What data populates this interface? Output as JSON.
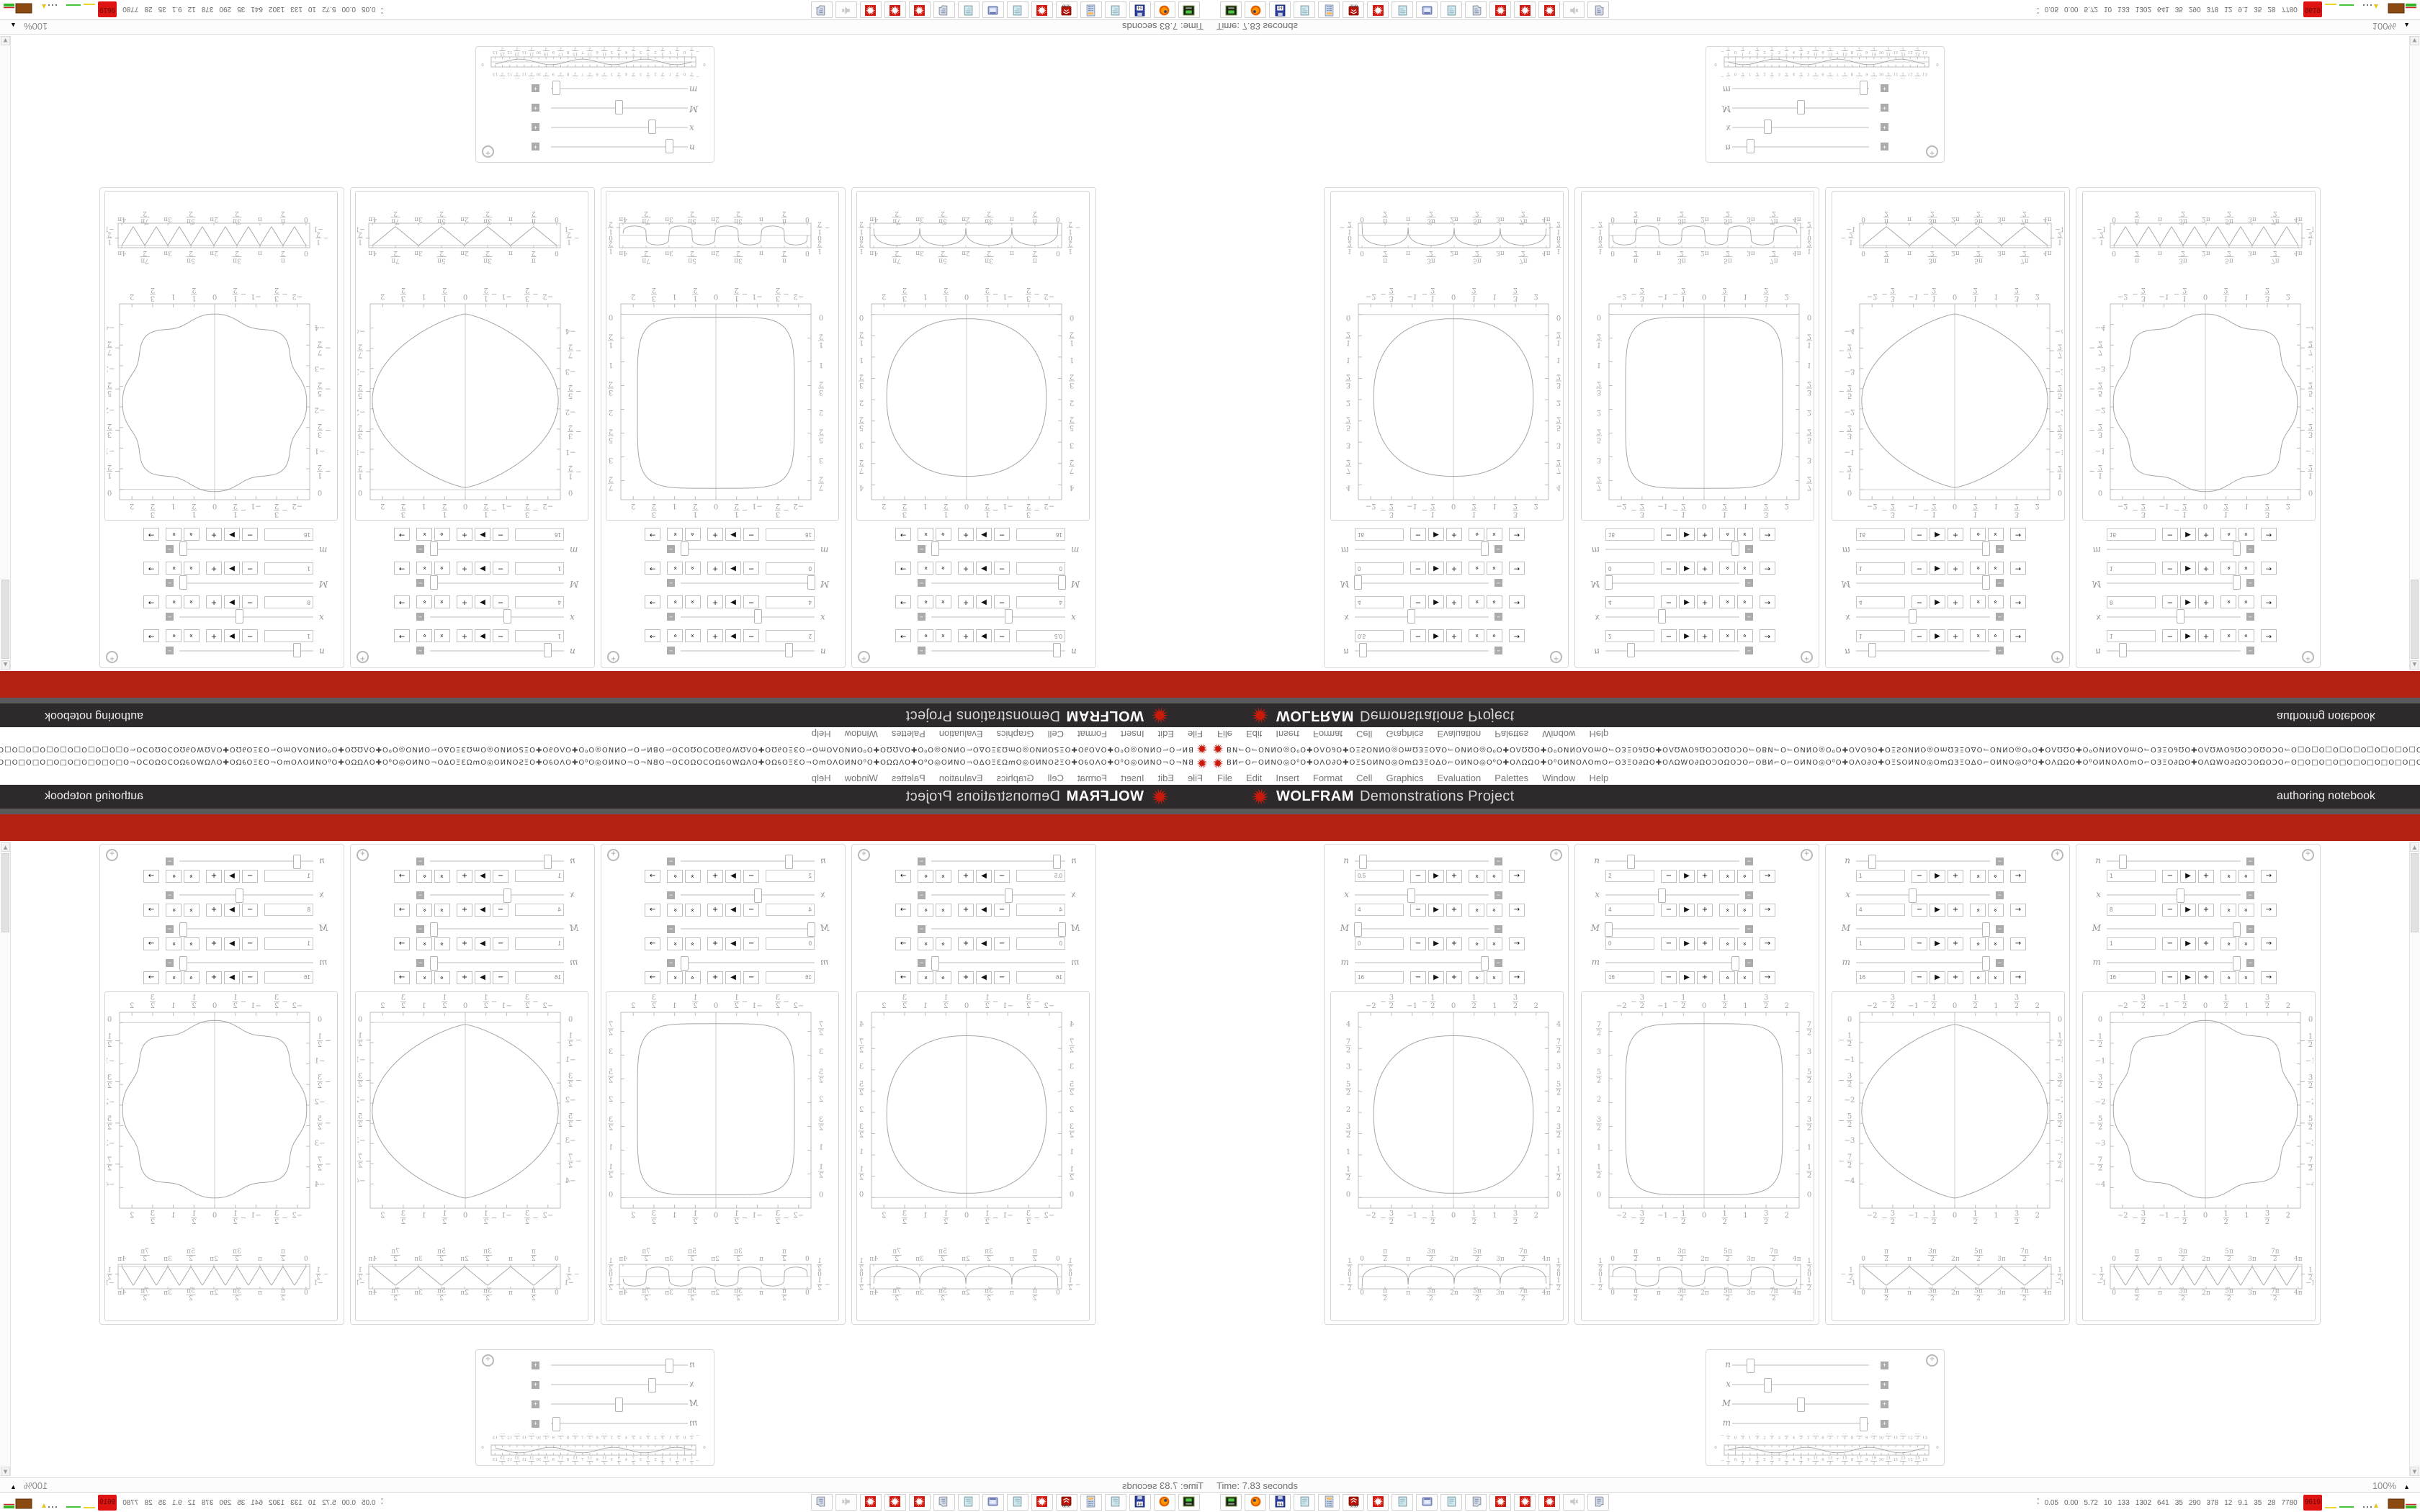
{
  "window": {
    "title_glyphs": "ΒИ⌐O⌐OИNO◎O⁰O✚OΛO∂O✚OΞSOИNO◎OmΩЗΞOΔO⌐OИNO◎O⁰O✚OΛΩΩO✚O⁰OИNOΛOmO⌐OЗΞO∂ΩO✚OΛΩWO∂ΩOϽOΩOϽO⌐OΒИ⌐O⌐OИNO◎O⁰O✚OΛO∂O✚OΞSOИNO◎OmΩЗΞOΔO⌐OИNO◎O⁰O✚OΛΩΩO✚O⁰OИNOΛOmO⌐OЗΞO∂ΩO✚OΛΩWO∂ΩOϽOΩOϽO⌐O□O□O□O□O□O□O□O□O□O□O□O□O□O□O□O□O□O□O□O□O□O□O□O□O□O□O□O□O□O□O□O□O□O□O□O□O□O□O□O□O□O□O□O□O□O□",
    "menu": [
      "File",
      "Edit",
      "Insert",
      "Format",
      "Cell",
      "Graphics",
      "Evaluation",
      "Palettes",
      "Window",
      "Help"
    ]
  },
  "header": {
    "wolfram": "WOLFRAM",
    "project": "Demonstrations Project",
    "right_label": "authoring notebook"
  },
  "status": {
    "time_label": "Time: 7.83 seconds",
    "zoom_level": "100%",
    "zoom_tri": "▲"
  },
  "taskbar": {
    "icons": [
      "drive-green",
      "firefox",
      "floppy-64",
      "notepad",
      "calculator",
      "red-cube",
      "spikey",
      "notepad",
      "console-window",
      "notepad",
      "scroll",
      "spikey",
      "spikey",
      "spikey",
      "speaker-muted",
      "scroll"
    ]
  },
  "tray": {
    "stats": [
      "0.05",
      "0.00",
      "5.72",
      "10",
      "133",
      "1302",
      "641",
      "35",
      "290",
      "378",
      "12",
      "9.1",
      "35",
      "28",
      "7780"
    ],
    "badge": "9619",
    "spark_colors": [
      "#e8d532",
      "#46c33a",
      "#111111",
      "#e6c321",
      "#8a4a12",
      "#35b52a",
      "#cc2222"
    ]
  },
  "colors": {
    "band_dark": "#2e2a2b",
    "band_gray": "#5a5a5c",
    "band_red": "#b32113",
    "spikey_red": "#c91a0b",
    "plot_frame": "#bdbdbd",
    "curve": "#a5a5a5",
    "tick_text": "#a2a2a2",
    "axis_line": "#cccccc"
  },
  "slider_labels": [
    "n",
    "x",
    "M",
    "m"
  ],
  "slider_buttons": [
    "−",
    "▶",
    "+",
    "«",
    "«",
    "→"
  ],
  "panels": [
    {
      "values": [
        "0.5",
        "4",
        "0",
        "16"
      ],
      "thumbs": [
        0.06,
        0.42,
        0.02,
        0.97
      ],
      "big": 0,
      "strip": 1
    },
    {
      "values": [
        "2",
        "4",
        "0",
        "16"
      ],
      "thumbs": [
        0.19,
        0.42,
        0.02,
        0.97
      ],
      "big": 2,
      "strip": 3
    },
    {
      "values": [
        "1",
        "4",
        "1",
        "16"
      ],
      "thumbs": [
        0.12,
        0.42,
        0.97,
        0.97
      ],
      "big": 4,
      "strip": 5
    },
    {
      "values": [
        "1",
        "8",
        "1",
        "16"
      ],
      "thumbs": [
        0.12,
        0.55,
        0.97,
        0.97
      ],
      "big": 6,
      "strip": 7
    }
  ],
  "small_panel": {
    "thumbs": [
      0.13,
      0.26,
      0.5,
      0.96
    ],
    "toggle": "+",
    "strip": 8
  },
  "chart_data": [
    {
      "id": "panel1-shape",
      "type": "line",
      "curve": "superellipse",
      "params": {
        "a": 1.93,
        "b": 1.85,
        "cy": 1.95,
        "ex": 2.3,
        "ey": 2.3,
        "w": 0
      },
      "xlim": [
        -2.3,
        2.3
      ],
      "ylim_draw": [
        4.35,
        -0.25
      ],
      "xtick_labels": [
        "-2",
        "-3/2",
        "-1",
        "-1/2",
        "0",
        "1/2",
        "1",
        "3/2",
        "2"
      ],
      "ytick_vals": [
        4,
        3.5,
        3,
        2.5,
        2,
        1.5,
        1,
        0.5,
        0
      ],
      "ytick_labels": [
        "4",
        "7/2",
        "3",
        "5/2",
        "2",
        "3/2",
        "1",
        "1/2",
        "0"
      ]
    },
    {
      "id": "panel1-wave",
      "type": "line",
      "curve": "cusped-arches",
      "fn": "abs(sin t)^0.25 - 1/2",
      "period": "π",
      "xlim": [
        0,
        12.566
      ],
      "ylim_draw": [
        0.62,
        -0.62
      ],
      "xtick_labels": [
        "0",
        "π/2",
        "π",
        "3π/2",
        "2π",
        "5π/2",
        "3π",
        "7π/2",
        "4π"
      ],
      "ytick_vals": [
        0.5,
        0,
        -0.5
      ],
      "ytick_labels": [
        "1/2",
        "0",
        "-1/2"
      ]
    },
    {
      "id": "panel2-shape",
      "type": "line",
      "curve": "superellipse",
      "params": {
        "a": 1.9,
        "b": 1.8,
        "cy": 1.86,
        "ex": 5.2,
        "ey": 5.2,
        "w": 0
      },
      "xlim": [
        -2.3,
        2.3
      ],
      "ylim_draw": [
        3.9,
        -0.22
      ],
      "xtick_labels": [
        "-2",
        "-3/2",
        "-1",
        "-1/2",
        "0",
        "1/2",
        "1",
        "3/2",
        "2"
      ],
      "ytick_vals": [
        3.5,
        3,
        2.5,
        2,
        1.5,
        1,
        0.5,
        0
      ],
      "ytick_labels": [
        "7/2",
        "3",
        "5/2",
        "2",
        "3/2",
        "1",
        "1/2",
        "0"
      ]
    },
    {
      "id": "panel2-wave",
      "type": "line",
      "curve": "rounded-square-wave",
      "fn": "0.48·sgn(sin 2t)·|sin 2t|^0.22",
      "period": "π",
      "xlim": [
        0,
        12.566
      ],
      "ylim_draw": [
        0.62,
        -0.62
      ],
      "xtick_labels": [
        "0",
        "π/2",
        "π",
        "3π/2",
        "2π",
        "5π/2",
        "3π",
        "7π/2",
        "4π"
      ],
      "ytick_vals": [
        0.5,
        0,
        -0.5
      ],
      "ytick_labels": [
        "1/2",
        "0",
        "-1/2"
      ]
    },
    {
      "id": "panel3-shape",
      "type": "line",
      "curve": "superellipse",
      "params": {
        "a": 2.25,
        "b": 2.15,
        "cy": -2.2,
        "ex": 1.3,
        "ey": 2.0,
        "w": 0
      },
      "xlim": [
        -2.3,
        2.3
      ],
      "ylim_draw": [
        0.25,
        -4.6
      ],
      "xtick_labels": [
        "-2",
        "-3/2",
        "-1",
        "-1/2",
        "0",
        "1/2",
        "1",
        "3/2",
        "2"
      ],
      "ytick_vals": [
        0,
        -0.5,
        -1,
        -1.5,
        -2,
        -2.5,
        -3,
        -3.5,
        -4
      ],
      "ytick_labels": [
        "0",
        "-1/2",
        "-1",
        "-3/2",
        "-2",
        "-5/2",
        "-3",
        "-7/2",
        "-4"
      ]
    },
    {
      "id": "panel3-wave",
      "type": "line",
      "curve": "triangle-wave",
      "fn": "-tri(t), period π, range 0..-1",
      "period": "π",
      "xlim": [
        0,
        12.566
      ],
      "ylim_draw": [
        0.12,
        -1.18
      ],
      "xtick_labels": [
        "0",
        "π/2",
        "π",
        "3π/2",
        "2π",
        "5π/2",
        "3π",
        "7π/2",
        "4π"
      ],
      "ytick_vals": [
        -0.5,
        -1
      ],
      "ytick_labels": [
        "-1/2",
        "-1"
      ]
    },
    {
      "id": "panel4-shape",
      "type": "line",
      "curve": "superellipse",
      "params": {
        "a": 2.12,
        "b": 2.05,
        "cy": -2.1,
        "ex": 2.3,
        "ey": 2.5,
        "w": 0.05
      },
      "xlim": [
        -2.3,
        2.3
      ],
      "ylim_draw": [
        0.25,
        -4.5
      ],
      "xtick_labels": [
        "-2",
        "-3/2",
        "-1",
        "-1/2",
        "0",
        "1/2",
        "1",
        "3/2",
        "2"
      ],
      "ytick_vals": [
        0,
        -0.5,
        -1,
        -1.5,
        -2,
        -2.5,
        -3,
        -3.5,
        -4
      ],
      "ytick_labels": [
        "0",
        "-1/2",
        "-1",
        "-3/2",
        "-2",
        "-5/2",
        "-3",
        "-7/2",
        "-4"
      ]
    },
    {
      "id": "panel4-wave",
      "type": "line",
      "curve": "triangle-wave",
      "fn": "-tri(t), period π/2, range 0..-1",
      "period": "π/2",
      "xlim": [
        0,
        12.566
      ],
      "ylim_draw": [
        0.12,
        -1.18
      ],
      "xtick_labels": [
        "0",
        "π/2",
        "π",
        "3π/2",
        "2π",
        "5π/2",
        "3π",
        "7π/2",
        "4π"
      ],
      "ytick_vals": [
        -0.5,
        -1
      ],
      "ytick_labels": [
        "-1/2",
        "-1"
      ]
    },
    {
      "id": "sequencer-wave",
      "type": "line",
      "curve": "sine",
      "fn": "0.3·sin(2π(t+0.5)/4.3)",
      "period": "4.3",
      "xlim": [
        -0.5,
        13
      ],
      "ylim_draw": [
        0.55,
        -0.55
      ],
      "xtick_labels": [
        "-1/2",
        "0",
        "1/2",
        "1",
        "3/2",
        "2",
        "5/2",
        "3",
        "7/2",
        "4",
        "9/2",
        "5",
        "11/2",
        "6",
        "13/2",
        "7",
        "15/2",
        "8",
        "17/2",
        "9",
        "19/2",
        "10",
        "21/2",
        "11",
        "23/2",
        "12",
        "25/2",
        "13"
      ],
      "ytick_vals": [
        0
      ],
      "ytick_labels": [
        "0"
      ]
    }
  ]
}
